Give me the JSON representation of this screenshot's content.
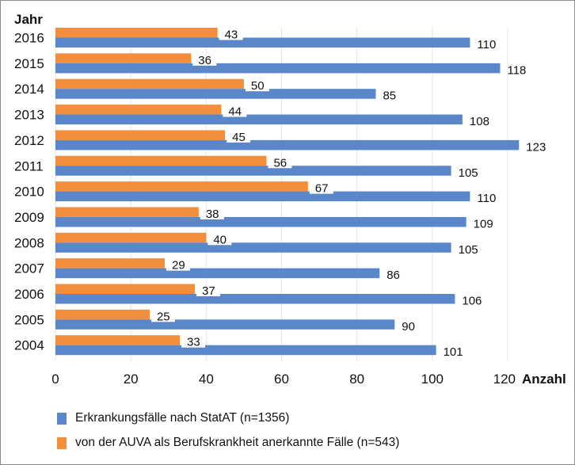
{
  "chart_data": {
    "type": "bar",
    "orientation": "horizontal",
    "ylabel": "Jahr",
    "xlabel": "Anzahl",
    "xlim": [
      0,
      120
    ],
    "xticks": [
      0,
      20,
      40,
      60,
      80,
      100,
      120
    ],
    "grid": "vertical",
    "legend_position": "bottom",
    "categories": [
      "2016",
      "2015",
      "2014",
      "2013",
      "2012",
      "2011",
      "2010",
      "2009",
      "2008",
      "2007",
      "2006",
      "2005",
      "2004"
    ],
    "series": [
      {
        "name": "von der AUVA als Berufskrankheit anerkannte Fälle (n=543)",
        "color": "#F28E3C",
        "values": [
          43,
          36,
          50,
          44,
          45,
          56,
          67,
          38,
          40,
          29,
          37,
          25,
          33
        ]
      },
      {
        "name": "Erkrankungsfälle nach StatAT (n=1356)",
        "color": "#5A87C9",
        "values": [
          110,
          118,
          85,
          108,
          123,
          105,
          110,
          109,
          105,
          86,
          106,
          90,
          101
        ]
      }
    ]
  }
}
